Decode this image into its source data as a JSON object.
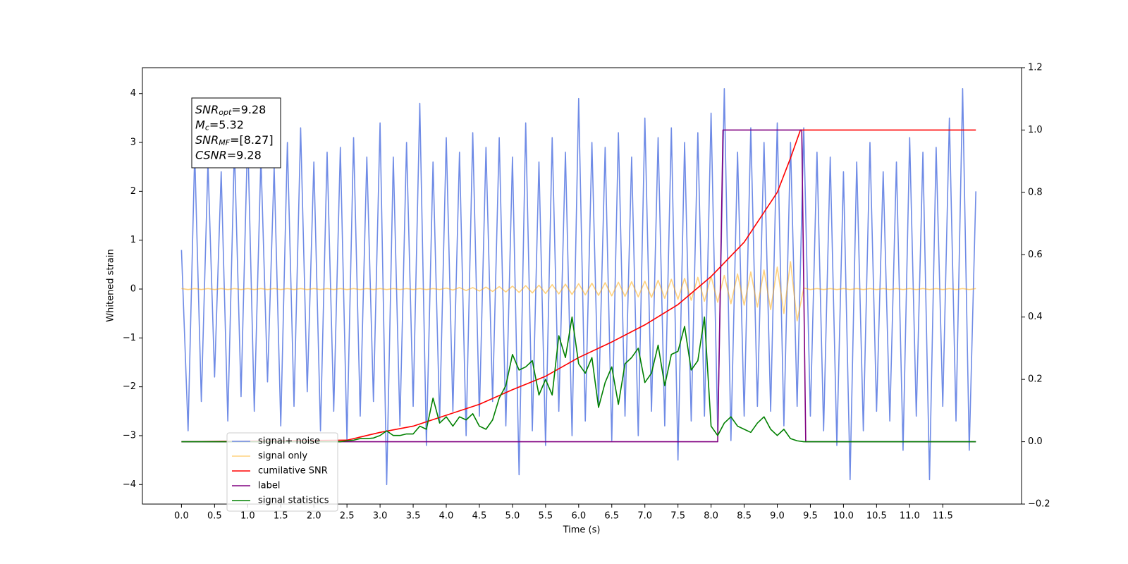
{
  "chart_data": {
    "type": "line",
    "xlabel": "Time (s)",
    "ylabel": "Whitened strain",
    "xlim": [
      -0.59,
      12.69
    ],
    "ylim": [
      -4.4,
      4.53
    ],
    "y2lim": [
      -0.2,
      1.2
    ],
    "xticks": [
      {
        "value": 0,
        "label": "0.0"
      },
      0.5,
      {
        "value": 1,
        "label": "1.0"
      },
      1.5,
      {
        "value": 2,
        "label": "2.0"
      },
      2.5,
      {
        "value": 3,
        "label": "3.0"
      },
      3.5,
      {
        "value": 4,
        "label": "4.0"
      },
      4.5,
      {
        "value": 5,
        "label": "5.0"
      },
      5.5,
      {
        "value": 6,
        "label": "6.0"
      },
      6.5,
      {
        "value": 7,
        "label": "7.0"
      },
      7.5,
      {
        "value": 8,
        "label": "8.0"
      },
      8.5,
      {
        "value": 9,
        "label": "9.0"
      },
      9.5,
      {
        "value": 10,
        "label": "10.0"
      },
      10.5,
      {
        "value": 11,
        "label": "11.0"
      },
      11.5
    ],
    "yticks": [
      {
        "value": -4,
        "label": "−4"
      },
      {
        "value": -3,
        "label": "−3"
      },
      {
        "value": -2,
        "label": "−2"
      },
      {
        "value": -1,
        "label": "−1"
      },
      0,
      1,
      2,
      3,
      4
    ],
    "y2ticks": [
      {
        "value": -0.2,
        "label": "−0.2"
      },
      {
        "value": 0,
        "label": "0.0"
      },
      0.2,
      0.4,
      0.6,
      0.8,
      {
        "value": 1,
        "label": "1.0"
      },
      1.2
    ],
    "legend": "lower left",
    "annotations": [
      {
        "symbol": "SNR",
        "subscript": "opt",
        "text": "=9.28"
      },
      {
        "symbol": "M",
        "subscript": "c",
        "text": "=5.32"
      },
      {
        "symbol": "SNR",
        "subscript": "MF",
        "text": "=[8.27]"
      },
      {
        "symbol": "CSNR",
        "text": "=9.28"
      }
    ],
    "x": [
      0,
      0.1,
      0.2,
      0.3,
      0.4,
      0.5,
      0.6,
      0.7,
      0.8,
      0.9,
      1,
      1.1,
      1.2,
      1.3,
      1.4,
      1.5,
      1.6,
      1.7,
      1.8,
      1.9,
      2,
      2.1,
      2.2,
      2.3,
      2.4,
      2.5,
      2.6,
      2.7,
      2.8,
      2.9,
      3,
      3.1,
      3.2,
      3.3,
      3.4,
      3.5,
      3.6,
      3.7,
      3.8,
      3.9,
      4,
      4.1,
      4.2,
      4.3,
      4.4,
      4.5,
      4.6,
      4.7,
      4.8,
      4.9,
      5,
      5.1,
      5.2,
      5.3,
      5.4,
      5.5,
      5.6,
      5.7,
      5.8,
      5.9,
      6,
      6.1,
      6.2,
      6.3,
      6.4,
      6.5,
      6.6,
      6.7,
      6.8,
      6.9,
      7,
      7.1,
      7.2,
      7.3,
      7.4,
      7.5,
      7.6,
      7.7,
      7.8,
      7.9,
      8,
      8.1,
      8.2,
      8.3,
      8.4,
      8.5,
      8.6,
      8.7,
      8.8,
      8.9,
      9,
      9.1,
      9.2,
      9.3,
      9.4,
      9.5,
      9.6,
      9.7,
      9.8,
      9.9,
      10,
      10.1,
      10.2,
      10.3,
      10.4,
      10.5,
      10.6,
      10.7,
      10.8,
      10.9,
      11,
      11.1,
      11.2,
      11.3,
      11.4,
      11.5,
      11.6,
      11.7,
      11.8,
      11.9,
      12
    ],
    "series": [
      {
        "name": "signal+ noise",
        "color": "#6f8be6",
        "values": [
          0.8,
          -2.9,
          2.8,
          -2.3,
          2.6,
          -1.8,
          2.4,
          -2.7,
          2.9,
          -2.2,
          3.2,
          -2.5,
          2.7,
          -1.9,
          2.5,
          -2.8,
          3.0,
          -2.4,
          3.3,
          -2.1,
          2.6,
          -2.9,
          2.8,
          -2.5,
          2.9,
          -3.1,
          3.1,
          -2.6,
          2.7,
          -2.3,
          3.4,
          -4.0,
          2.7,
          -2.8,
          3.0,
          -2.4,
          3.8,
          -3.2,
          2.6,
          -2.7,
          3.1,
          -2.5,
          2.8,
          -3.0,
          3.2,
          -2.6,
          2.9,
          -2.3,
          3.1,
          -2.8,
          2.7,
          -3.8,
          3.4,
          -2.9,
          2.6,
          -3.2,
          3.1,
          -2.5,
          2.8,
          -3.0,
          3.9,
          -2.7,
          3.0,
          -2.4,
          2.9,
          -3.1,
          3.2,
          -2.6,
          2.7,
          -3.0,
          3.5,
          -2.5,
          3.1,
          -2.8,
          3.3,
          -3.5,
          3.0,
          -2.7,
          3.2,
          -2.6,
          3.6,
          -2.9,
          4.1,
          -3.1,
          2.8,
          -2.6,
          3.3,
          -2.4,
          3.0,
          -2.5,
          3.4,
          -2.8,
          3.0,
          -2.4,
          3.3,
          -2.6,
          2.8,
          -2.9,
          2.7,
          -3.2,
          2.4,
          -3.9,
          2.6,
          -2.9,
          3.0,
          -2.5,
          2.4,
          -2.7,
          2.6,
          -3.3,
          3.1,
          -2.6,
          2.8,
          -3.9,
          2.9,
          -2.4,
          3.5,
          -2.7,
          4.1,
          -3.3,
          2.0
        ]
      },
      {
        "name": "signal only",
        "color": "#ffa500",
        "alpha": 0.5,
        "values": [
          0.01,
          -0.01,
          0.01,
          -0.01,
          0.01,
          -0.01,
          0.01,
          -0.01,
          0.01,
          -0.01,
          0.01,
          -0.01,
          0.01,
          -0.01,
          0.01,
          -0.01,
          0.01,
          -0.01,
          0.01,
          -0.01,
          0.01,
          -0.01,
          0.01,
          -0.01,
          0.01,
          -0.01,
          0.01,
          -0.01,
          0.01,
          -0.01,
          0.01,
          -0.01,
          0.01,
          -0.01,
          0.01,
          -0.01,
          0.01,
          -0.01,
          0.01,
          -0.01,
          0.02,
          -0.02,
          0.03,
          -0.03,
          0.03,
          -0.04,
          0.04,
          -0.05,
          0.05,
          -0.06,
          0.06,
          -0.07,
          0.07,
          -0.08,
          0.08,
          -0.09,
          0.09,
          -0.1,
          0.1,
          -0.11,
          0.11,
          -0.12,
          0.12,
          -0.13,
          0.13,
          -0.14,
          0.14,
          -0.15,
          0.15,
          -0.16,
          0.16,
          -0.17,
          0.18,
          -0.19,
          0.2,
          -0.21,
          0.22,
          -0.23,
          0.24,
          -0.25,
          0.26,
          -0.27,
          0.28,
          -0.3,
          0.31,
          -0.33,
          0.35,
          -0.37,
          0.39,
          -0.42,
          0.45,
          -0.5,
          0.56,
          -0.65,
          0.02,
          -0.01,
          0.01,
          -0.01,
          0.01,
          -0.01,
          0.01,
          -0.01,
          0.01,
          -0.01,
          0.01,
          -0.01,
          0.01,
          -0.01,
          0.01,
          -0.01,
          0.01,
          -0.01,
          0.01,
          -0.01,
          0.01,
          -0.01,
          0.01,
          -0.01,
          0.01,
          -0.01,
          0.01
        ]
      },
      {
        "name": "cumilative SNR",
        "color": "#ff0000",
        "axis": "y2",
        "x": [
          0,
          2.5,
          3,
          3.5,
          4,
          4.5,
          5,
          5.5,
          6,
          6.5,
          7,
          7.5,
          8,
          8.5,
          9,
          9.2,
          9.3,
          9.35,
          12
        ],
        "values": [
          0,
          0.005,
          0.03,
          0.05,
          0.085,
          0.12,
          0.167,
          0.21,
          0.27,
          0.32,
          0.375,
          0.44,
          0.53,
          0.64,
          0.8,
          0.91,
          0.97,
          1,
          1
        ]
      },
      {
        "name": "label",
        "color": "#800080",
        "axis": "y2",
        "x": [
          0,
          8.1,
          8.18,
          9.37,
          9.43,
          12
        ],
        "values": [
          0,
          0,
          1,
          1,
          0,
          0
        ]
      },
      {
        "name": "signal statistics",
        "color": "#008000",
        "axis": "y2",
        "values": [
          0,
          0,
          0,
          0,
          0,
          0,
          0,
          0,
          0,
          0,
          0,
          0,
          0,
          0,
          0,
          0,
          0,
          0,
          0,
          0,
          0,
          0,
          0,
          0,
          0,
          0.003,
          0.005,
          0.01,
          0.01,
          0.012,
          0.02,
          0.035,
          0.02,
          0.02,
          0.025,
          0.025,
          0.05,
          0.04,
          0.14,
          0.06,
          0.08,
          0.05,
          0.08,
          0.07,
          0.09,
          0.05,
          0.04,
          0.07,
          0.14,
          0.18,
          0.28,
          0.23,
          0.24,
          0.26,
          0.15,
          0.2,
          0.15,
          0.34,
          0.27,
          0.4,
          0.25,
          0.22,
          0.27,
          0.11,
          0.19,
          0.24,
          0.12,
          0.25,
          0.27,
          0.3,
          0.19,
          0.22,
          0.31,
          0.18,
          0.28,
          0.29,
          0.37,
          0.23,
          0.26,
          0.4,
          0.05,
          0.02,
          0.06,
          0.08,
          0.05,
          0.04,
          0.03,
          0.06,
          0.08,
          0.04,
          0.02,
          0.04,
          0.01,
          0.003,
          0,
          0,
          0,
          0,
          0,
          0,
          0,
          0,
          0,
          0,
          0,
          0,
          0,
          0,
          0,
          0,
          0,
          0,
          0,
          0,
          0,
          0,
          0,
          0,
          0,
          0,
          0
        ]
      }
    ]
  }
}
